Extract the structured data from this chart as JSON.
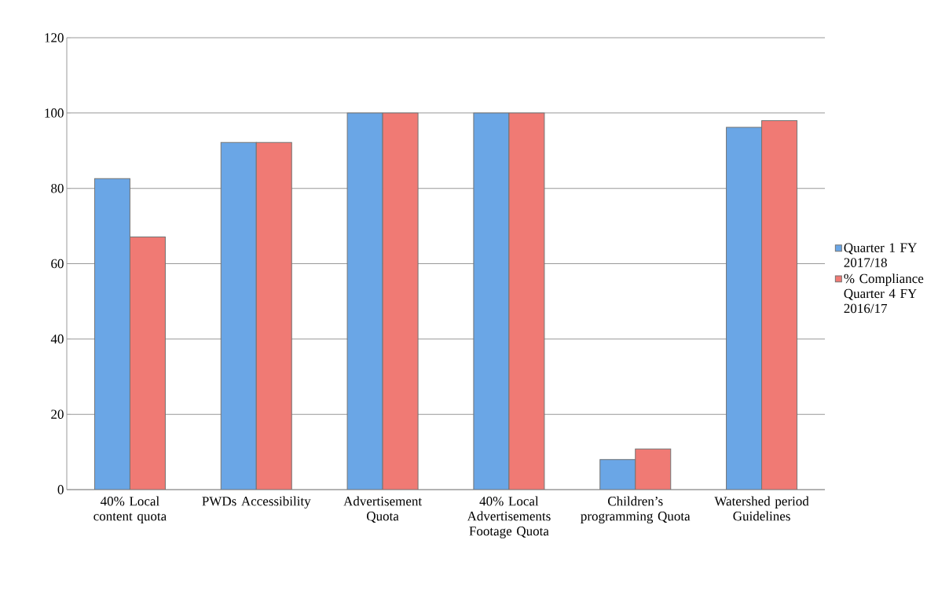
{
  "chart_data": {
    "type": "bar",
    "categories": [
      "40% Local content quota",
      "PWDs Accessibility",
      "Advertisement Quota",
      "40% Local Advertisements Footage Quota",
      "Children’s programming Quota",
      "Watershed period Guidelines"
    ],
    "series": [
      {
        "name": "Quarter 1 FY 2017/18",
        "color": "#6aa6e6",
        "values": [
          82.6,
          92.2,
          100,
          100,
          8,
          96.2
        ]
      },
      {
        "name": "% Compliance Quarter 4 FY 2016/17",
        "color": "#f07a74",
        "values": [
          67.1,
          92.2,
          100,
          100,
          10.8,
          98
        ]
      }
    ],
    "ylim": [
      0,
      120
    ],
    "yticks": [
      0,
      20,
      40,
      60,
      80,
      100,
      120
    ],
    "grid": "y",
    "legend": "right"
  }
}
